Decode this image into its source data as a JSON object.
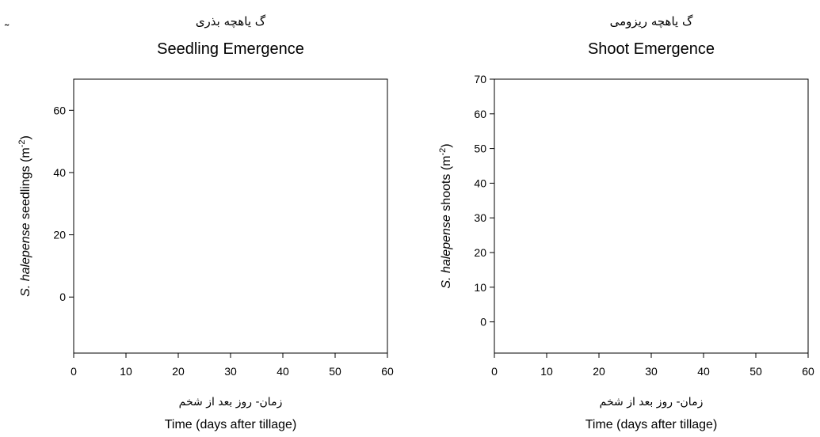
{
  "corner_mark": "˜",
  "chart_data": [
    {
      "type": "scatter",
      "title": "Seedling Emergence",
      "subtitle": "گ یاهچه بذری",
      "xlabel": "Time (days after tillage)",
      "xlabel_sub": "زمان- روز بعد از شخم",
      "ylabel": {
        "italic": "S. halepense",
        "rest": " seedlings (m",
        "sup": "-2",
        "close": ")"
      },
      "xlim": [
        0,
        60
      ],
      "ylim": [
        -18,
        70
      ],
      "xticks": [
        0,
        10,
        20,
        30,
        40,
        50,
        60
      ],
      "yticks": [
        0,
        20,
        40,
        60
      ],
      "grid": false,
      "series": []
    },
    {
      "type": "scatter",
      "title": "Shoot Emergence",
      "subtitle": "گ یاهچه ریزومی",
      "xlabel": "Time (days after tillage)",
      "xlabel_sub": "زمان- روز بعد از شخم",
      "ylabel": {
        "italic": "S. halepense",
        "rest": " shoots (m",
        "sup": "-2",
        "close": ")"
      },
      "xlim": [
        0,
        60
      ],
      "ylim": [
        -9,
        70
      ],
      "xticks": [
        0,
        10,
        20,
        30,
        40,
        50,
        60
      ],
      "yticks": [
        0,
        10,
        20,
        30,
        40,
        50,
        60,
        70
      ],
      "grid": false,
      "series": []
    }
  ]
}
